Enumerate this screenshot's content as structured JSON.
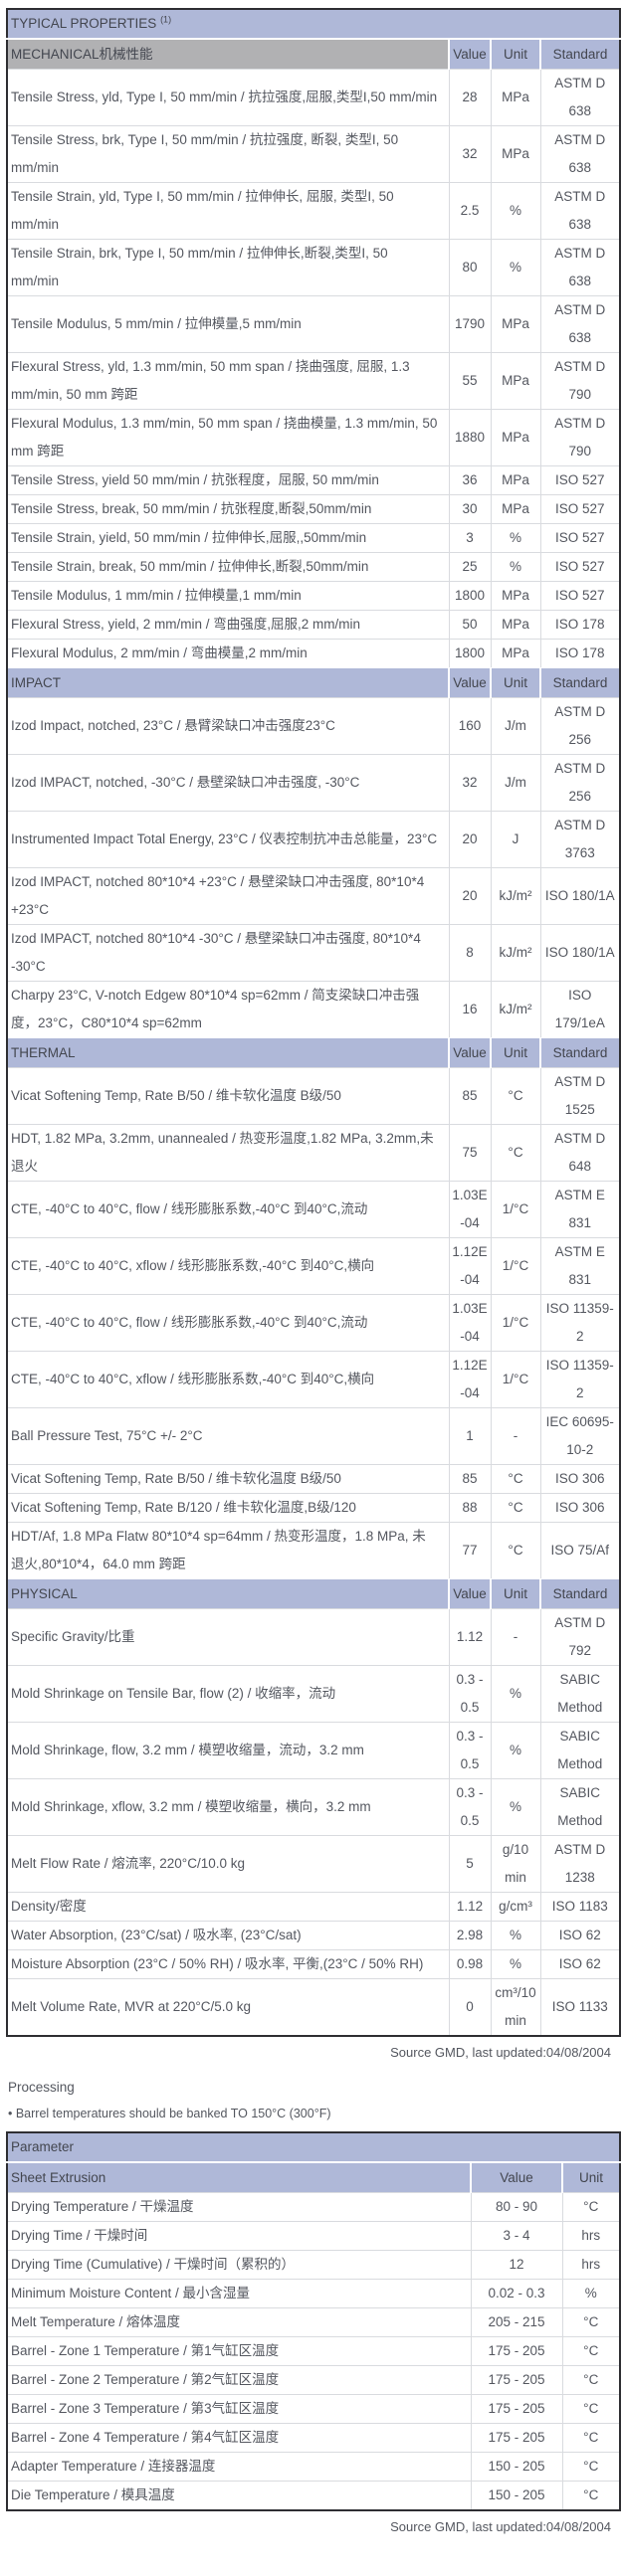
{
  "colors": {
    "band": "#afb8d8",
    "gray": "#b1b1b3"
  },
  "table1": {
    "title": "TYPICAL PROPERTIES",
    "title_sup": "(1)",
    "columns": [
      "Value",
      "Unit",
      "Standard"
    ],
    "sections": [
      {
        "header": "MECHANICAL机械性能",
        "rows": [
          {
            "property": "Tensile Stress, yld, Type I, 50 mm/min / 抗拉强度,屈服,类型I,50 mm/min",
            "value": "28",
            "unit": "MPa",
            "standard": "ASTM D 638"
          },
          {
            "property": "Tensile Stress, brk, Type I, 50 mm/min / 抗拉强度, 断裂, 类型I, 50 mm/min",
            "value": "32",
            "unit": "MPa",
            "standard": "ASTM D 638"
          },
          {
            "property": "Tensile Strain, yld, Type I, 50 mm/min / 拉伸伸长, 屈服, 类型I, 50 mm/min",
            "value": "2.5",
            "unit": "%",
            "standard": "ASTM D 638"
          },
          {
            "property": "Tensile Strain, brk, Type I, 50 mm/min / 拉伸伸长,断裂,类型I, 50 mm/min",
            "value": "80",
            "unit": "%",
            "standard": "ASTM D 638"
          },
          {
            "property": "Tensile Modulus, 5 mm/min / 拉伸模量,5 mm/min",
            "value": "1790",
            "unit": "MPa",
            "standard": "ASTM D 638"
          },
          {
            "property": "Flexural Stress, yld, 1.3 mm/min, 50 mm span / 挠曲强度, 屈服, 1.3 mm/min, 50 mm 跨距",
            "value": "55",
            "unit": "MPa",
            "standard": "ASTM D 790"
          },
          {
            "property": "Flexural Modulus, 1.3 mm/min, 50 mm span / 挠曲模量, 1.3 mm/min, 50 mm 跨距",
            "value": "1880",
            "unit": "MPa",
            "standard": "ASTM D 790"
          },
          {
            "property": "Tensile Stress, yield 50 mm/min / 抗张程度，屈服, 50 mm/min",
            "value": "36",
            "unit": "MPa",
            "standard": "ISO 527"
          },
          {
            "property": "Tensile Stress, break, 50 mm/min / 抗张程度,断裂,50mm/min",
            "value": "30",
            "unit": "MPa",
            "standard": "ISO 527"
          },
          {
            "property": "Tensile Strain, yield, 50 mm/min / 拉伸伸长,屈服,,50mm/min",
            "value": "3",
            "unit": "%",
            "standard": "ISO 527"
          },
          {
            "property": "Tensile Strain, break, 50 mm/min / 拉伸伸长,断裂,50mm/min",
            "value": "25",
            "unit": "%",
            "standard": "ISO 527"
          },
          {
            "property": "Tensile Modulus, 1 mm/min / 拉伸模量,1 mm/min",
            "value": "1800",
            "unit": "MPa",
            "standard": "ISO 527"
          },
          {
            "property": "Flexural Stress, yield, 2 mm/min / 弯曲强度,屈服,2 mm/min",
            "value": "50",
            "unit": "MPa",
            "standard": "ISO 178"
          },
          {
            "property": "Flexural Modulus, 2 mm/min / 弯曲模量,2 mm/min",
            "value": "1800",
            "unit": "MPa",
            "standard": "ISO 178"
          }
        ]
      },
      {
        "header": "IMPACT",
        "rows": [
          {
            "property": "Izod Impact, notched, 23°C / 悬臂梁缺口冲击强度23°C",
            "value": "160",
            "unit": "J/m",
            "standard": "ASTM D 256"
          },
          {
            "property": "Izod IMPACT, notched, -30°C / 悬壁梁缺口冲击强度, -30°C",
            "value": "32",
            "unit": "J/m",
            "standard": "ASTM D 256"
          },
          {
            "property": "Instrumented Impact Total Energy, 23°C / 仪表控制抗冲击总能量，23°C",
            "value": "20",
            "unit": "J",
            "standard": "ASTM D 3763"
          },
          {
            "property": "Izod IMPACT, notched 80*10*4 +23°C / 悬壁梁缺口冲击强度, 80*10*4 +23°C",
            "value": "20",
            "unit": "kJ/m²",
            "standard": "ISO 180/1A"
          },
          {
            "property": "Izod IMPACT, notched 80*10*4 -30°C / 悬壁梁缺口冲击强度, 80*10*4 -30°C",
            "value": "8",
            "unit": "kJ/m²",
            "standard": "ISO 180/1A"
          },
          {
            "property": "Charpy 23°C, V-notch Edgew 80*10*4 sp=62mm / 简支梁缺口冲击强度，23°C，C80*10*4 sp=62mm",
            "value": "16",
            "unit": "kJ/m²",
            "standard": "ISO 179/1eA"
          }
        ]
      },
      {
        "header": "THERMAL",
        "rows": [
          {
            "property": "Vicat Softening Temp, Rate B/50 / 维卡软化温度 B级/50",
            "value": "85",
            "unit": "°C",
            "standard": "ASTM D 1525"
          },
          {
            "property": "HDT, 1.82 MPa, 3.2mm, unannealed / 热变形温度,1.82 MPa, 3.2mm,未退火",
            "value": "75",
            "unit": "°C",
            "standard": "ASTM D 648"
          },
          {
            "property": "CTE, -40°C to 40°C, flow / 线形膨胀系数,-40°C 到40°C,流动",
            "value": "1.03E-04",
            "unit": "1/°C",
            "standard": "ASTM E 831"
          },
          {
            "property": "CTE, -40°C to 40°C, xflow / 线形膨胀系数,-40°C 到40°C,横向",
            "value": "1.12E-04",
            "unit": "1/°C",
            "standard": "ASTM E 831"
          },
          {
            "property": "CTE, -40°C to 40°C, flow / 线形膨胀系数,-40°C 到40°C,流动",
            "value": "1.03E-04",
            "unit": "1/°C",
            "standard": "ISO 11359-2"
          },
          {
            "property": "CTE, -40°C to 40°C, xflow / 线形膨胀系数,-40°C 到40°C,横向",
            "value": "1.12E-04",
            "unit": "1/°C",
            "standard": "ISO 11359-2"
          },
          {
            "property": "Ball Pressure Test, 75°C +/- 2°C",
            "value": "1",
            "unit": "-",
            "standard": "IEC 60695-10-2"
          },
          {
            "property": "Vicat Softening Temp, Rate B/50 / 维卡软化温度 B级/50",
            "value": "85",
            "unit": "°C",
            "standard": "ISO 306"
          },
          {
            "property": "Vicat Softening Temp, Rate B/120 / 维卡软化温度,B级/120",
            "value": "88",
            "unit": "°C",
            "standard": "ISO 306"
          },
          {
            "property": "HDT/Af, 1.8 MPa Flatw 80*10*4 sp=64mm / 热变形温度，1.8 MPa, 未退火,80*10*4，64.0 mm 跨距",
            "value": "77",
            "unit": "°C",
            "standard": "ISO 75/Af"
          }
        ]
      },
      {
        "header": "PHYSICAL",
        "rows": [
          {
            "property": "Specific Gravity/比重",
            "value": "1.12",
            "unit": "-",
            "standard": "ASTM D 792"
          },
          {
            "property": "Mold Shrinkage on Tensile Bar, flow (2) / 收缩率，流动",
            "value": "0.3 - 0.5",
            "unit": "%",
            "standard": "SABIC Method"
          },
          {
            "property": "Mold Shrinkage, flow, 3.2 mm / 模塑收缩量，流动，3.2 mm",
            "value": "0.3 - 0.5",
            "unit": "%",
            "standard": "SABIC Method"
          },
          {
            "property": "Mold Shrinkage, xflow, 3.2 mm / 模塑收缩量，横向，3.2 mm",
            "value": "0.3 - 0.5",
            "unit": "%",
            "standard": "SABIC Method"
          },
          {
            "property": "Melt Flow Rate / 熔流率, 220°C/10.0 kg",
            "value": "5",
            "unit": "g/10 min",
            "standard": "ASTM D 1238"
          },
          {
            "property": "Density/密度",
            "value": "1.12",
            "unit": "g/cm³",
            "standard": "ISO 1183"
          },
          {
            "property": "Water Absorption, (23°C/sat) / 吸水率, (23°C/sat)",
            "value": "2.98",
            "unit": "%",
            "standard": "ISO 62"
          },
          {
            "property": "Moisture Absorption (23°C / 50% RH) / 吸水率, 平衡,(23°C / 50% RH)",
            "value": "0.98",
            "unit": "%",
            "standard": "ISO 62"
          },
          {
            "property": "Melt Volume Rate, MVR at 220°C/5.0 kg",
            "value": "0",
            "unit": "cm³/10 min",
            "standard": "ISO 1133"
          }
        ]
      }
    ],
    "footer": "Source GMD, last updated:04/08/2004"
  },
  "processing": {
    "heading": "Processing",
    "bullet": "• Barrel temperatures should be banked TO 150°C (300°F)"
  },
  "table2": {
    "title": "Parameter",
    "subheader": "Sheet Extrusion",
    "columns": [
      "Value",
      "Unit"
    ],
    "rows": [
      {
        "parameter": "Drying Temperature / 干燥温度",
        "value": "80 - 90",
        "unit": "°C"
      },
      {
        "parameter": "Drying Time / 干燥时间",
        "value": "3 - 4",
        "unit": "hrs"
      },
      {
        "parameter": "Drying Time (Cumulative) / 干燥时间（累积的）",
        "value": "12",
        "unit": "hrs"
      },
      {
        "parameter": "Minimum Moisture Content / 最小含湿量",
        "value": "0.02 - 0.3",
        "unit": "%"
      },
      {
        "parameter": "Melt Temperature / 熔体温度",
        "value": "205 - 215",
        "unit": "°C"
      },
      {
        "parameter": "Barrel - Zone 1 Temperature / 第1气缸区温度",
        "value": "175 - 205",
        "unit": "°C"
      },
      {
        "parameter": "Barrel - Zone 2 Temperature / 第2气缸区温度",
        "value": "175 - 205",
        "unit": "°C"
      },
      {
        "parameter": "Barrel - Zone 3 Temperature / 第3气缸区温度",
        "value": "175 - 205",
        "unit": "°C"
      },
      {
        "parameter": "Barrel - Zone 4 Temperature / 第4气缸区温度",
        "value": "175 - 205",
        "unit": "°C"
      },
      {
        "parameter": "Adapter Temperature / 连接器温度",
        "value": "150 - 205",
        "unit": "°C"
      },
      {
        "parameter": "Die Temperature / 模具温度",
        "value": "150 - 205",
        "unit": "°C"
      }
    ],
    "footer": "Source GMD, last updated:04/08/2004"
  }
}
